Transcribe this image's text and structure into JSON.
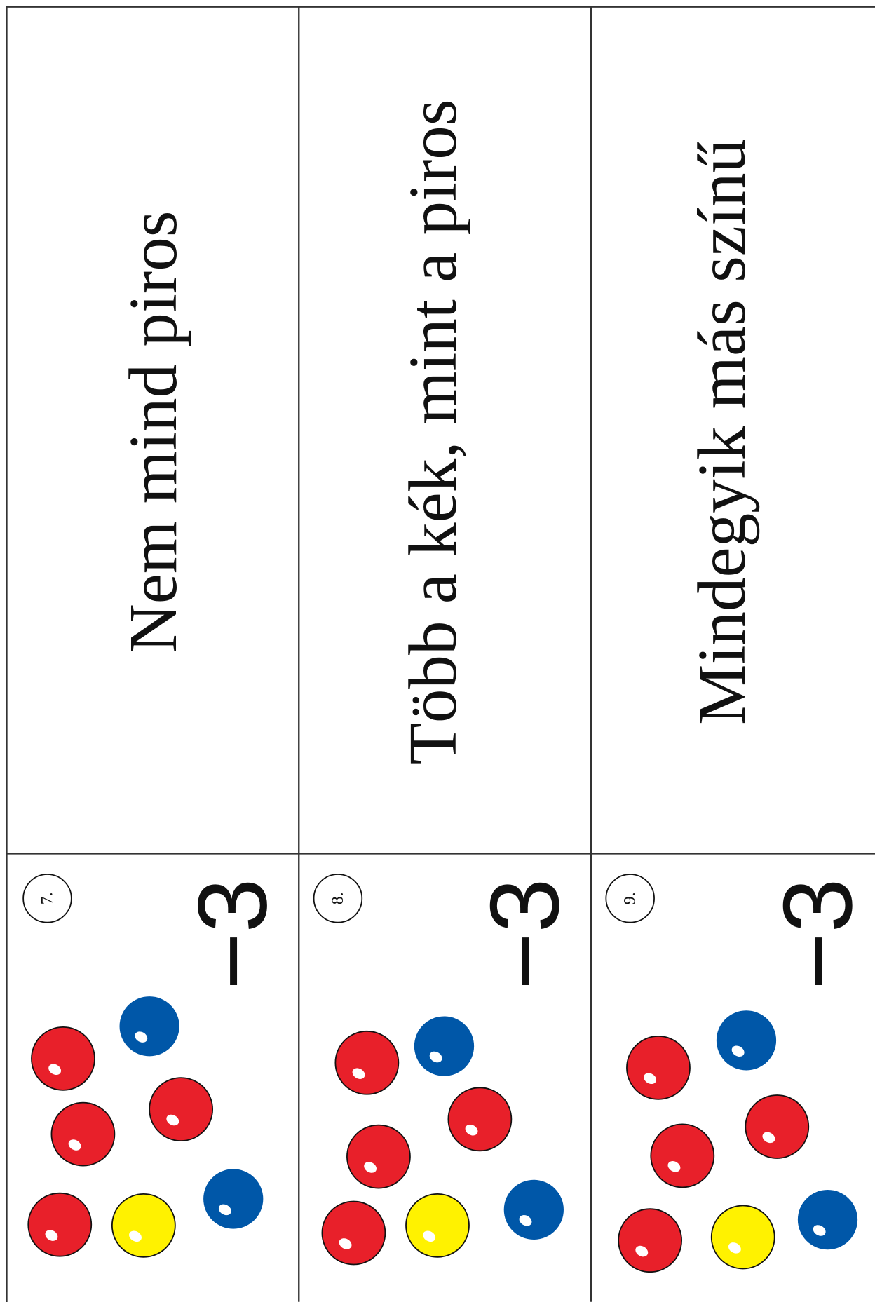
{
  "cards": [
    {
      "number": "7.",
      "label": "Nem mind piros",
      "score": "−3"
    },
    {
      "number": "8.",
      "label": "Több a kék, mint a piros",
      "score": "−3"
    },
    {
      "number": "9.",
      "label": "Mindegyik más színű",
      "score": "−3"
    }
  ]
}
